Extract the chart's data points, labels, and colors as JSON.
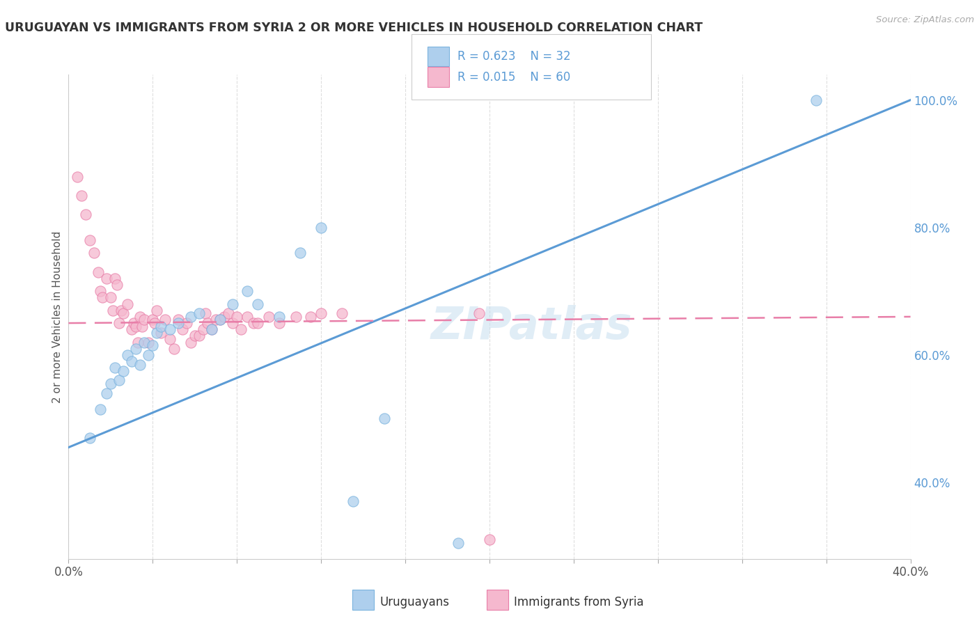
{
  "title": "URUGUAYAN VS IMMIGRANTS FROM SYRIA 2 OR MORE VEHICLES IN HOUSEHOLD CORRELATION CHART",
  "source_text": "Source: ZipAtlas.com",
  "ylabel": "2 or more Vehicles in Household",
  "xlim": [
    0.0,
    0.4
  ],
  "ylim": [
    0.28,
    1.04
  ],
  "xticks": [
    0.0,
    0.04,
    0.08,
    0.12,
    0.16,
    0.2,
    0.24,
    0.28,
    0.32,
    0.36,
    0.4
  ],
  "yticks_right": [
    0.4,
    0.6,
    0.8,
    1.0
  ],
  "ytick_right_labels": [
    "40.0%",
    "60.0%",
    "80.0%",
    "100.0%"
  ],
  "blue_color": "#aecfed",
  "pink_color": "#f5b8ce",
  "blue_edge_color": "#7ab3de",
  "pink_edge_color": "#e87ea8",
  "blue_line_color": "#5b9bd5",
  "pink_line_color": "#e87ea8",
  "watermark": "ZIPatlas",
  "uruguayan_x": [
    0.01,
    0.015,
    0.018,
    0.02,
    0.022,
    0.024,
    0.026,
    0.028,
    0.03,
    0.032,
    0.034,
    0.036,
    0.038,
    0.04,
    0.042,
    0.044,
    0.048,
    0.052,
    0.058,
    0.062,
    0.068,
    0.072,
    0.078,
    0.085,
    0.09,
    0.1,
    0.11,
    0.12,
    0.135,
    0.15,
    0.185,
    0.355
  ],
  "uruguayan_y": [
    0.47,
    0.515,
    0.54,
    0.555,
    0.58,
    0.56,
    0.575,
    0.6,
    0.59,
    0.61,
    0.585,
    0.62,
    0.6,
    0.615,
    0.635,
    0.645,
    0.64,
    0.65,
    0.66,
    0.665,
    0.64,
    0.655,
    0.68,
    0.7,
    0.68,
    0.66,
    0.76,
    0.8,
    0.37,
    0.5,
    0.305,
    1.0
  ],
  "syria_x": [
    0.004,
    0.006,
    0.008,
    0.01,
    0.012,
    0.014,
    0.015,
    0.016,
    0.018,
    0.02,
    0.021,
    0.022,
    0.023,
    0.024,
    0.025,
    0.026,
    0.028,
    0.03,
    0.031,
    0.032,
    0.033,
    0.034,
    0.035,
    0.036,
    0.038,
    0.04,
    0.041,
    0.042,
    0.044,
    0.046,
    0.048,
    0.05,
    0.052,
    0.054,
    0.056,
    0.058,
    0.06,
    0.062,
    0.064,
    0.065,
    0.066,
    0.068,
    0.07,
    0.072,
    0.074,
    0.076,
    0.078,
    0.08,
    0.082,
    0.085,
    0.088,
    0.09,
    0.095,
    0.1,
    0.108,
    0.115,
    0.12,
    0.13,
    0.195,
    0.2
  ],
  "syria_y": [
    0.88,
    0.85,
    0.82,
    0.78,
    0.76,
    0.73,
    0.7,
    0.69,
    0.72,
    0.69,
    0.67,
    0.72,
    0.71,
    0.65,
    0.67,
    0.665,
    0.68,
    0.64,
    0.65,
    0.645,
    0.62,
    0.66,
    0.645,
    0.655,
    0.62,
    0.655,
    0.65,
    0.67,
    0.635,
    0.655,
    0.625,
    0.61,
    0.655,
    0.64,
    0.65,
    0.62,
    0.63,
    0.63,
    0.64,
    0.665,
    0.65,
    0.64,
    0.655,
    0.655,
    0.66,
    0.665,
    0.65,
    0.66,
    0.64,
    0.66,
    0.65,
    0.65,
    0.66,
    0.65,
    0.66,
    0.66,
    0.665,
    0.665,
    0.665,
    0.31
  ],
  "blue_trend_x": [
    0.0,
    0.4
  ],
  "blue_trend_y": [
    0.455,
    1.0
  ],
  "pink_trend_x": [
    0.0,
    0.4
  ],
  "pink_trend_y": [
    0.65,
    0.66
  ],
  "background_color": "#ffffff",
  "grid_color": "#dedede"
}
